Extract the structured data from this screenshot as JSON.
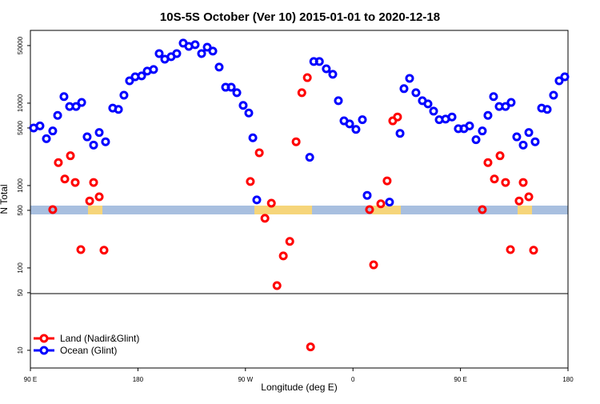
{
  "chart_data": {
    "type": "scatter",
    "title": "10S-5S October (Ver 10)   2015-01-01 to 2020-12-18",
    "x_label": "Longitude (deg E)",
    "y_label": "N Total",
    "xlim": [
      90,
      540
    ],
    "xticks": [
      {
        "value": 90,
        "label": "90 E"
      },
      180,
      {
        "value": 270,
        "label": "90 W"
      },
      {
        "value": 360,
        "label": "0"
      },
      {
        "value": 450,
        "label": "90 E"
      },
      {
        "value": 540,
        "label": "180"
      }
    ],
    "ylim": [
      6.1,
      76400
    ],
    "log_y": true,
    "yticks": [
      10,
      50,
      100,
      500,
      1000,
      5000,
      10000,
      50000
    ],
    "legend": "bottom-left",
    "series": [
      {
        "name": "Land (Nadir&Glint)",
        "color": "#ff0000",
        "x": [
          108.7,
          113.4,
          118.8,
          123.5,
          127.5,
          132.2,
          139.6,
          142.9,
          147.6,
          151.6,
          274.1,
          281.6,
          286.3,
          291.7,
          296.4,
          301.7,
          307.1,
          312.4,
          317.2,
          321.8,
          324.5,
          373.9,
          377.3,
          383.3,
          388.6,
          393.3,
          397.3,
          468.3,
          473,
          478.4,
          483.1,
          487.7,
          491.8,
          499.1,
          502.5,
          507.2,
          511.2
        ],
        "values": [
          510,
          1900,
          1200,
          2300,
          1090,
          167,
          650,
          1090,
          730,
          164,
          1120,
          2500,
          400,
          610,
          61,
          140,
          210,
          3400,
          13400,
          20400,
          11,
          510,
          109,
          600,
          1140,
          6100,
          6800,
          510,
          1900,
          1200,
          2300,
          1090,
          167,
          650,
          1090,
          730,
          164
        ]
      },
      {
        "name": "Ocean (Glint)",
        "color": "#0000ff",
        "x": [
          92.7,
          98,
          103.4,
          108.7,
          112.8,
          118.1,
          122.8,
          128.2,
          132.9,
          137.5,
          142.9,
          147.6,
          152.9,
          158.9,
          163.7,
          168.3,
          173,
          177.7,
          183.1,
          187.8,
          193.1,
          197.8,
          202.5,
          207.8,
          212.5,
          217.9,
          222.6,
          227.9,
          233.3,
          238,
          242.7,
          248,
          253.4,
          258.1,
          262.8,
          268.1,
          272.8,
          276.2,
          279.5,
          323.8,
          327.2,
          331.9,
          337.7,
          343.1,
          347.8,
          352.5,
          357.2,
          362.5,
          367.9,
          371.9,
          390.6,
          399.4,
          402.7,
          407.4,
          412.7,
          418.1,
          422.8,
          427.5,
          432.2,
          437.5,
          442.9,
          448.2,
          452.9,
          457.6,
          463,
          468.3,
          473,
          477.7,
          482.4,
          487.7,
          492.4,
          497.1,
          502.5,
          507.2,
          512.5,
          517.9,
          522.6,
          527.9,
          532.6,
          537.3
        ],
        "values": [
          5000,
          5300,
          3700,
          4600,
          7100,
          12000,
          9100,
          9100,
          10200,
          3900,
          3100,
          4400,
          3400,
          8700,
          8400,
          12500,
          18700,
          20900,
          21400,
          24500,
          25600,
          40000,
          34200,
          36600,
          40000,
          53500,
          48900,
          51200,
          40000,
          47800,
          42800,
          27400,
          15600,
          15600,
          13400,
          9400,
          7600,
          3800,
          670,
          2200,
          32000,
          32000,
          26100,
          22400,
          10700,
          6100,
          5600,
          4800,
          6300,
          760,
          630,
          4300,
          15000,
          20000,
          13400,
          10700,
          9800,
          8000,
          6300,
          6400,
          6800,
          4900,
          4900,
          5300,
          3600,
          4600,
          7100,
          12000,
          9100,
          9100,
          10200,
          3900,
          3100,
          4400,
          3400,
          8700,
          8400,
          12500,
          18700,
          20900
        ]
      }
    ]
  }
}
